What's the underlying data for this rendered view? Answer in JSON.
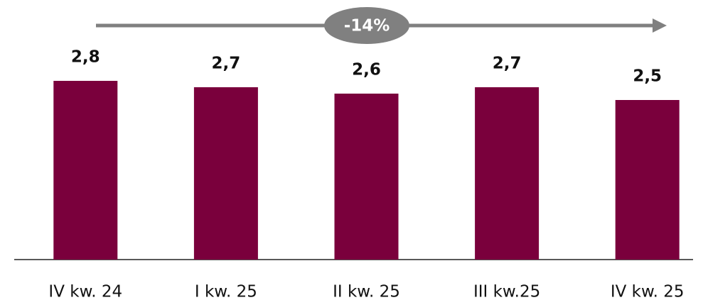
{
  "chart_data": {
    "type": "bar",
    "categories": [
      "IV kw. 24",
      "I kw. 25",
      "II kw. 25",
      "III kw.25",
      "IV kw. 25"
    ],
    "values": [
      2.8,
      2.7,
      2.6,
      2.7,
      2.5
    ],
    "value_labels": [
      "2,8",
      "2,7",
      "2,6",
      "2,7",
      "2,5"
    ],
    "color": "#7a003c",
    "annotation": "-14%"
  }
}
